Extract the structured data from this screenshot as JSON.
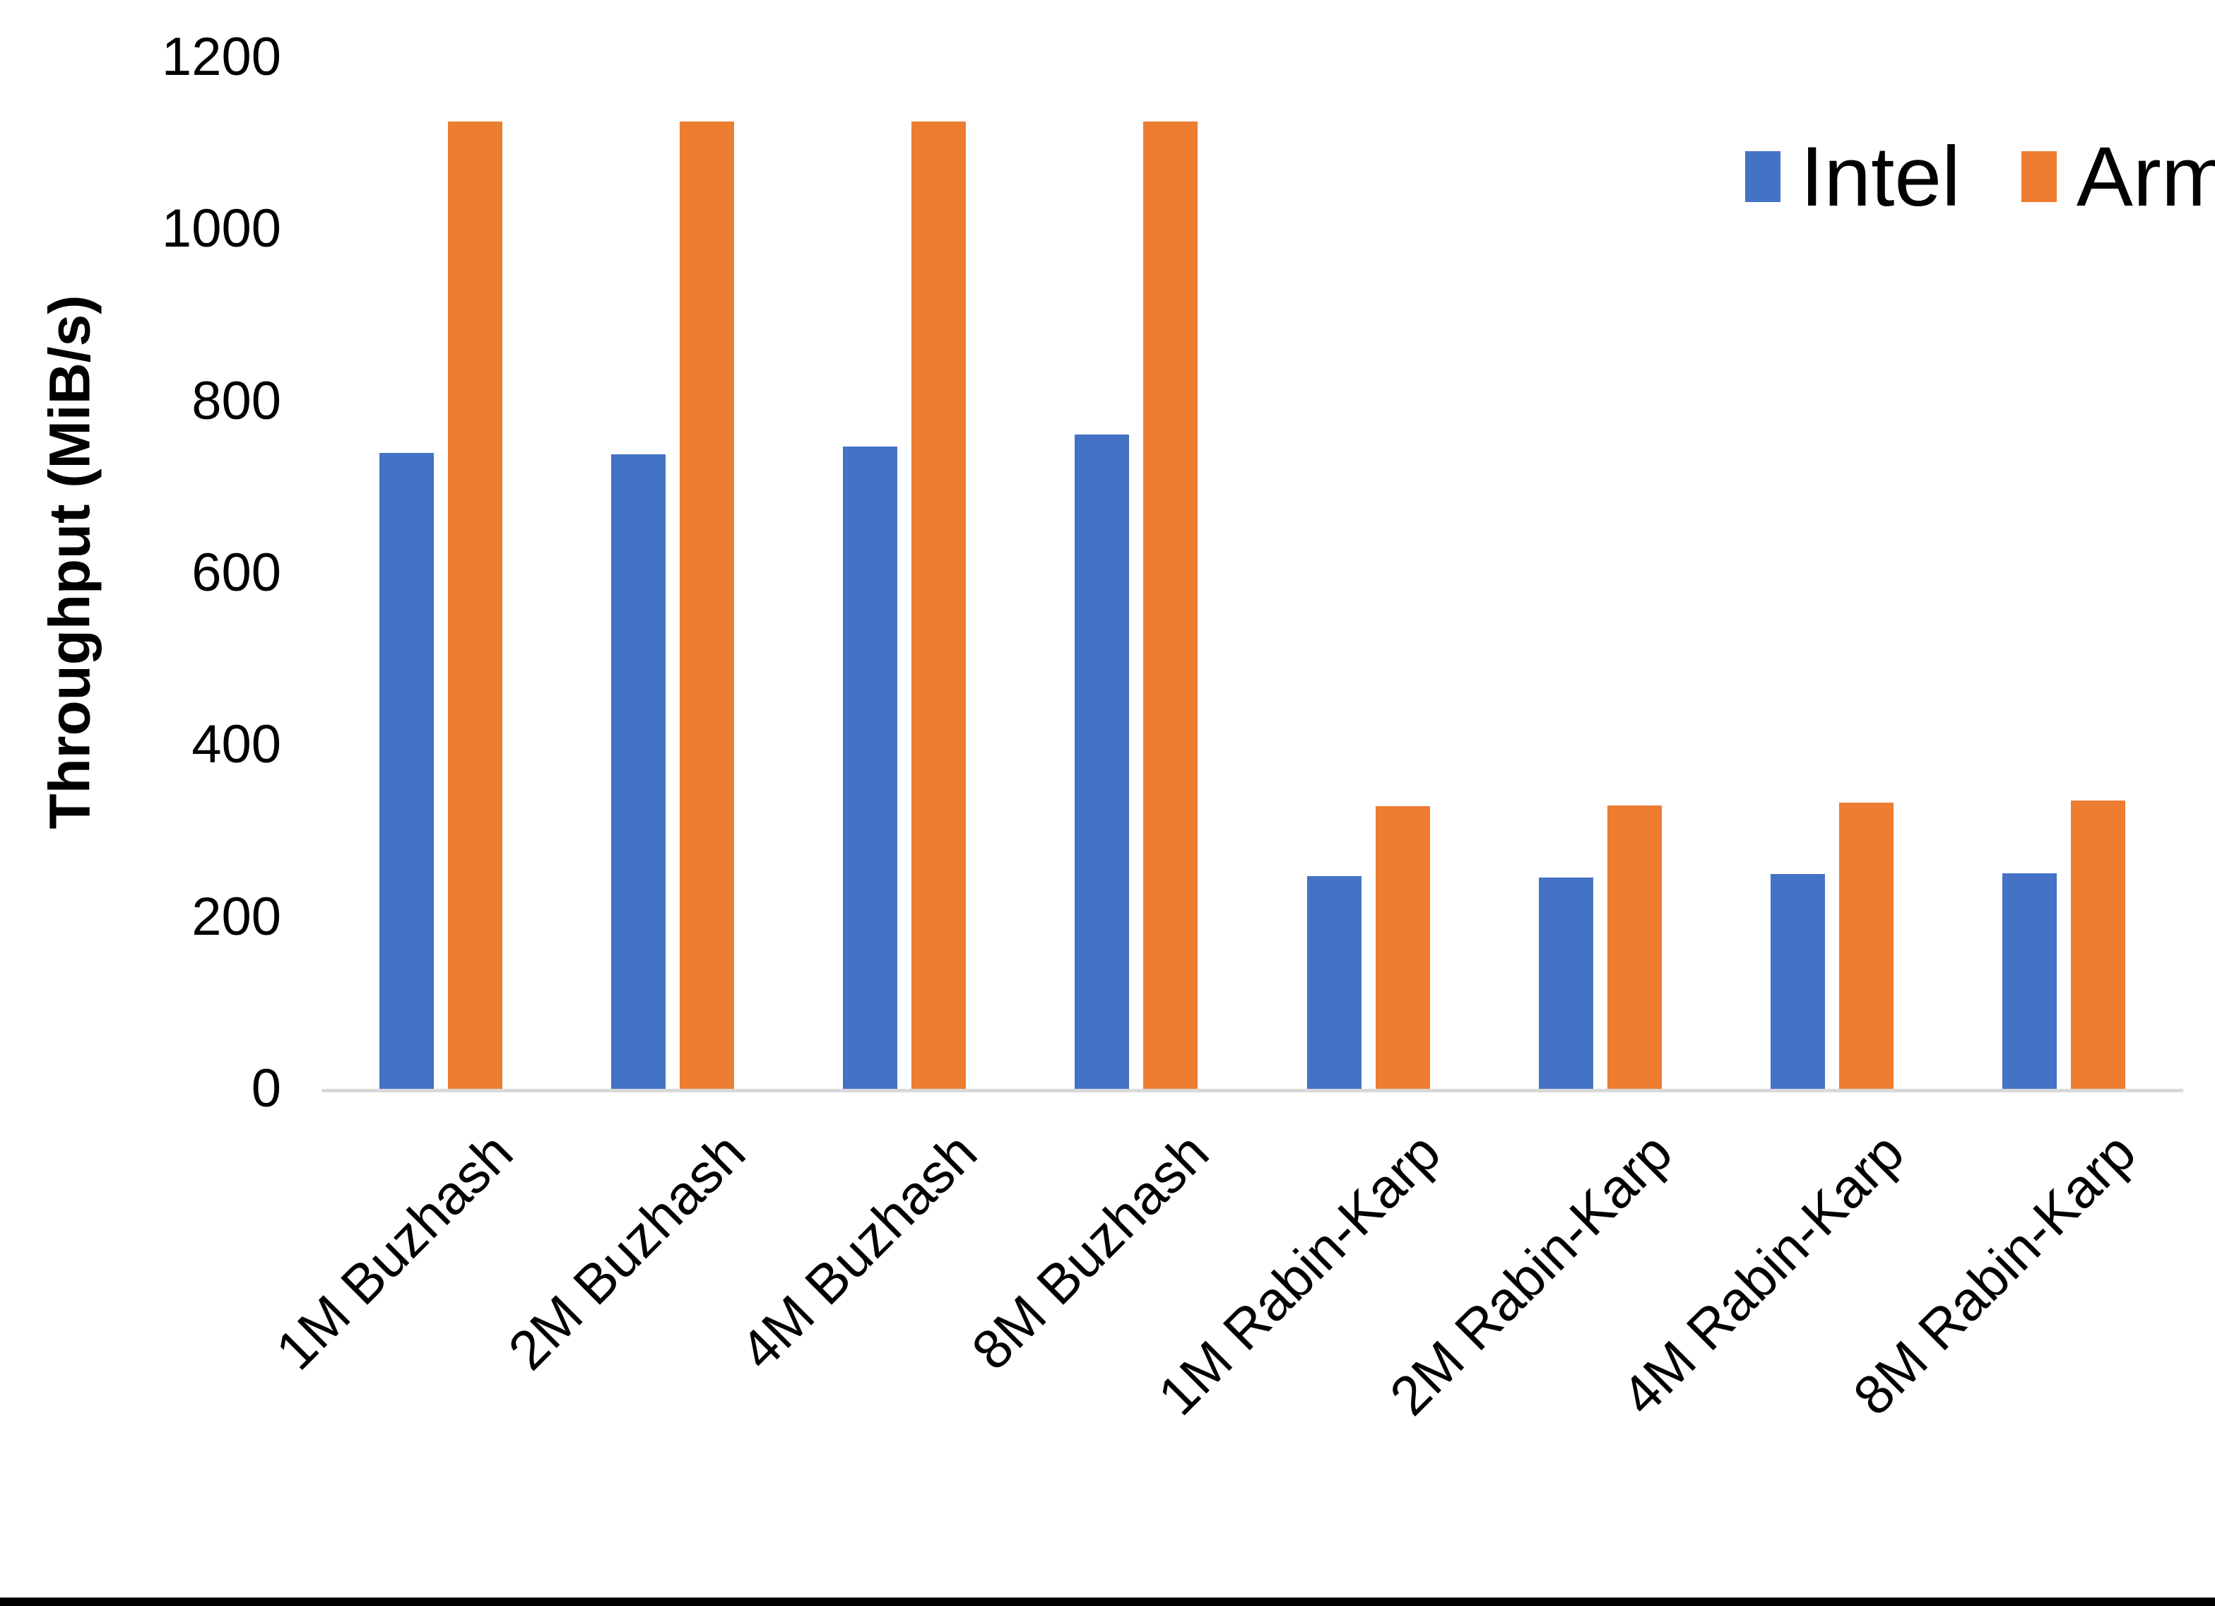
{
  "chart_data": {
    "type": "bar",
    "title": "",
    "xlabel": "",
    "ylabel": "Throughput (MiB/s)",
    "ylim": [
      0,
      1200
    ],
    "yticks": [
      0,
      200,
      400,
      600,
      800,
      1000,
      1200
    ],
    "grid": false,
    "legend_position": "top-right",
    "categories": [
      "1M Buzhash",
      "2M Buzhash",
      "4M Buzhash",
      "8M Buzhash",
      "1M Rabin-Karp",
      "2M Rabin-Karp",
      "4M Rabin-Karp",
      "8M Rabin-Karp"
    ],
    "series": [
      {
        "name": "Intel",
        "color": "#4472C4",
        "values": [
          740,
          738,
          747,
          761,
          247,
          246,
          250,
          251
        ]
      },
      {
        "name": "Arm",
        "color": "#ED7D31",
        "values": [
          1125,
          1125,
          1125,
          1125,
          329,
          330,
          333,
          335
        ]
      }
    ],
    "axis_line_color": "#D9D9D9"
  },
  "frame": {
    "bottom_border_color": "#000000"
  }
}
